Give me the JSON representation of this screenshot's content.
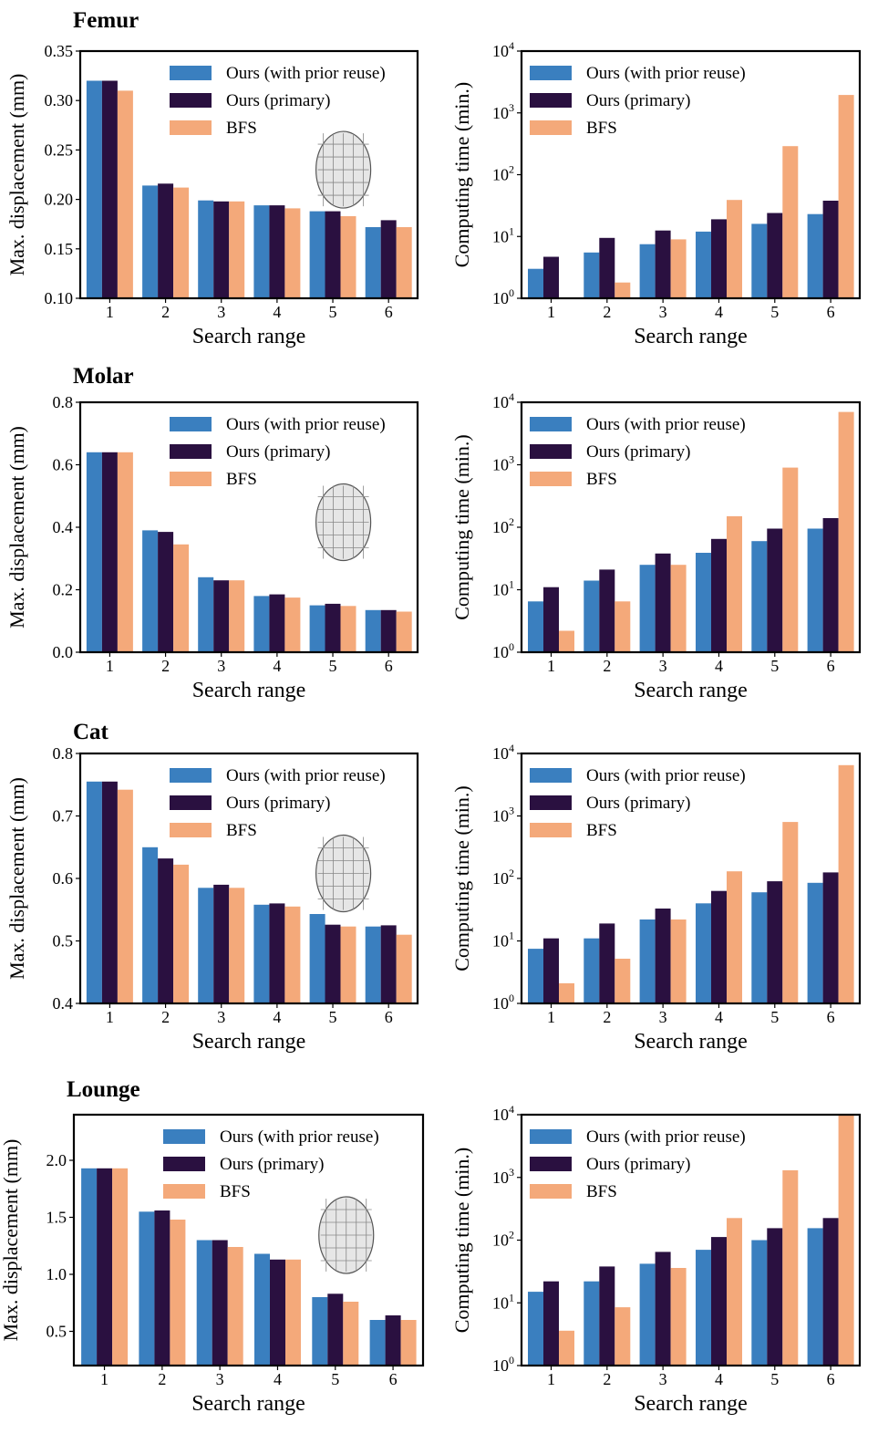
{
  "colors": {
    "ours_reuse": "#3a7fbf",
    "ours_primary": "#2a1040",
    "bfs": "#f4a97a"
  },
  "chart_data": [
    {
      "id": "femur-disp",
      "type": "bar",
      "title": "Femur",
      "xlabel": "Search range",
      "ylabel": "Max. displacement (mm)",
      "categories": [
        "1",
        "2",
        "3",
        "4",
        "5",
        "6"
      ],
      "ylim": [
        0.1,
        0.35
      ],
      "yscale": "linear",
      "yticks": [
        0.1,
        0.15,
        0.2,
        0.25,
        0.3,
        0.35
      ],
      "ytick_labels": [
        "0.10",
        "0.15",
        "0.20",
        "0.25",
        "0.30",
        "0.35"
      ],
      "legend": [
        "Ours (with prior reuse)",
        "Ours (primary)",
        "BFS"
      ],
      "series": [
        {
          "name": "Ours (with prior reuse)",
          "values": [
            0.32,
            0.214,
            0.199,
            0.194,
            0.188,
            0.172
          ]
        },
        {
          "name": "Ours (primary)",
          "values": [
            0.32,
            0.216,
            0.198,
            0.194,
            0.188,
            0.179
          ]
        },
        {
          "name": "BFS",
          "values": [
            0.31,
            0.212,
            0.198,
            0.191,
            0.183,
            0.172
          ]
        }
      ]
    },
    {
      "id": "femur-time",
      "type": "bar",
      "title": "",
      "xlabel": "Search range",
      "ylabel": "Computing time (min.)",
      "categories": [
        "1",
        "2",
        "3",
        "4",
        "5",
        "6"
      ],
      "ylim": [
        1,
        10000
      ],
      "yscale": "log",
      "yticks": [
        1,
        10,
        100,
        1000,
        10000
      ],
      "ytick_exponents": [
        "0",
        "1",
        "2",
        "3",
        "4"
      ],
      "legend": [
        "Ours (with prior reuse)",
        "Ours (primary)",
        "BFS"
      ],
      "series": [
        {
          "name": "Ours (with prior reuse)",
          "values": [
            3,
            5.5,
            7.5,
            12,
            16,
            23
          ]
        },
        {
          "name": "Ours (primary)",
          "values": [
            4.7,
            9.5,
            12.5,
            19,
            24,
            38
          ]
        },
        {
          "name": "BFS",
          "values": [
            0.9,
            1.8,
            9,
            39,
            290,
            1950
          ]
        }
      ]
    },
    {
      "id": "molar-disp",
      "type": "bar",
      "title": "Molar",
      "xlabel": "Search range",
      "ylabel": "Max. displacement (mm)",
      "categories": [
        "1",
        "2",
        "3",
        "4",
        "5",
        "6"
      ],
      "ylim": [
        0.0,
        0.8
      ],
      "yscale": "linear",
      "yticks": [
        0.0,
        0.2,
        0.4,
        0.6,
        0.8
      ],
      "ytick_labels": [
        "0.0",
        "0.2",
        "0.4",
        "0.6",
        "0.8"
      ],
      "legend": [
        "Ours (with prior reuse)",
        "Ours (primary)",
        "BFS"
      ],
      "series": [
        {
          "name": "Ours (with prior reuse)",
          "values": [
            0.64,
            0.39,
            0.24,
            0.18,
            0.15,
            0.135
          ]
        },
        {
          "name": "Ours (primary)",
          "values": [
            0.64,
            0.385,
            0.23,
            0.185,
            0.155,
            0.135
          ]
        },
        {
          "name": "BFS",
          "values": [
            0.64,
            0.345,
            0.23,
            0.175,
            0.148,
            0.13
          ]
        }
      ]
    },
    {
      "id": "molar-time",
      "type": "bar",
      "title": "",
      "xlabel": "Search range",
      "ylabel": "Computing time (min.)",
      "categories": [
        "1",
        "2",
        "3",
        "4",
        "5",
        "6"
      ],
      "ylim": [
        1,
        10000
      ],
      "yscale": "log",
      "yticks": [
        1,
        10,
        100,
        1000,
        10000
      ],
      "ytick_exponents": [
        "0",
        "1",
        "2",
        "3",
        "4"
      ],
      "legend": [
        "Ours (with prior reuse)",
        "Ours (primary)",
        "BFS"
      ],
      "series": [
        {
          "name": "Ours (with prior reuse)",
          "values": [
            6.5,
            14,
            25,
            39,
            60,
            95
          ]
        },
        {
          "name": "Ours (primary)",
          "values": [
            11,
            21,
            38,
            65,
            95,
            140
          ]
        },
        {
          "name": "BFS",
          "values": [
            2.2,
            6.5,
            25,
            150,
            900,
            7000
          ]
        }
      ]
    },
    {
      "id": "cat-disp",
      "type": "bar",
      "title": "Cat",
      "xlabel": "Search range",
      "ylabel": "Max. displacement (mm)",
      "categories": [
        "1",
        "2",
        "3",
        "4",
        "5",
        "6"
      ],
      "ylim": [
        0.4,
        0.8
      ],
      "yscale": "linear",
      "yticks": [
        0.4,
        0.5,
        0.6,
        0.7,
        0.8
      ],
      "ytick_labels": [
        "0.4",
        "0.5",
        "0.6",
        "0.7",
        "0.8"
      ],
      "legend": [
        "Ours (with prior reuse)",
        "Ours (primary)",
        "BFS"
      ],
      "series": [
        {
          "name": "Ours (with prior reuse)",
          "values": [
            0.755,
            0.65,
            0.585,
            0.558,
            0.543,
            0.523
          ]
        },
        {
          "name": "Ours (primary)",
          "values": [
            0.755,
            0.632,
            0.59,
            0.56,
            0.526,
            0.525
          ]
        },
        {
          "name": "BFS",
          "values": [
            0.742,
            0.622,
            0.585,
            0.555,
            0.523,
            0.51
          ]
        }
      ]
    },
    {
      "id": "cat-time",
      "type": "bar",
      "title": "",
      "xlabel": "Search range",
      "ylabel": "Computing time (min.)",
      "categories": [
        "1",
        "2",
        "3",
        "4",
        "5",
        "6"
      ],
      "ylim": [
        1,
        10000
      ],
      "yscale": "log",
      "yticks": [
        1,
        10,
        100,
        1000,
        10000
      ],
      "ytick_exponents": [
        "0",
        "1",
        "2",
        "3",
        "4"
      ],
      "legend": [
        "Ours (with prior reuse)",
        "Ours (primary)",
        "BFS"
      ],
      "series": [
        {
          "name": "Ours (with prior reuse)",
          "values": [
            7.5,
            11,
            22,
            40,
            60,
            85
          ]
        },
        {
          "name": "Ours (primary)",
          "values": [
            11,
            19,
            33,
            63,
            90,
            125
          ]
        },
        {
          "name": "BFS",
          "values": [
            2.1,
            5.2,
            22,
            130,
            800,
            6500
          ]
        }
      ]
    },
    {
      "id": "lounge-disp",
      "type": "bar",
      "title": "Lounge",
      "xlabel": "Search range",
      "ylabel": "Max. displacement (mm)",
      "categories": [
        "1",
        "2",
        "3",
        "4",
        "5",
        "6"
      ],
      "ylim": [
        0.2,
        2.4
      ],
      "yscale": "linear",
      "yticks": [
        0.5,
        1.0,
        1.5,
        2.0
      ],
      "ytick_labels": [
        "0.5",
        "1.0",
        "1.5",
        "2.0"
      ],
      "legend": [
        "Ours (with prior reuse)",
        "Ours (primary)",
        "BFS"
      ],
      "series": [
        {
          "name": "Ours (with prior reuse)",
          "values": [
            1.93,
            1.55,
            1.3,
            1.18,
            0.8,
            0.6
          ]
        },
        {
          "name": "Ours (primary)",
          "values": [
            1.93,
            1.56,
            1.3,
            1.13,
            0.83,
            0.64
          ]
        },
        {
          "name": "BFS",
          "values": [
            1.93,
            1.48,
            1.24,
            1.13,
            0.76,
            0.6
          ]
        }
      ]
    },
    {
      "id": "lounge-time",
      "type": "bar",
      "title": "",
      "xlabel": "Search range",
      "ylabel": "Computing time (min.)",
      "categories": [
        "1",
        "2",
        "3",
        "4",
        "5",
        "6"
      ],
      "ylim": [
        1,
        10000
      ],
      "yscale": "log",
      "yticks": [
        1,
        10,
        100,
        1000,
        10000
      ],
      "ytick_exponents": [
        "0",
        "1",
        "2",
        "3",
        "4"
      ],
      "legend": [
        "Ours (with prior reuse)",
        "Ours (primary)",
        "BFS"
      ],
      "series": [
        {
          "name": "Ours (with prior reuse)",
          "values": [
            15,
            22,
            42,
            70,
            100,
            155
          ]
        },
        {
          "name": "Ours (primary)",
          "values": [
            22,
            38,
            65,
            112,
            155,
            225
          ]
        },
        {
          "name": "BFS",
          "values": [
            3.6,
            8.5,
            36,
            225,
            1300,
            10000
          ]
        }
      ]
    }
  ]
}
